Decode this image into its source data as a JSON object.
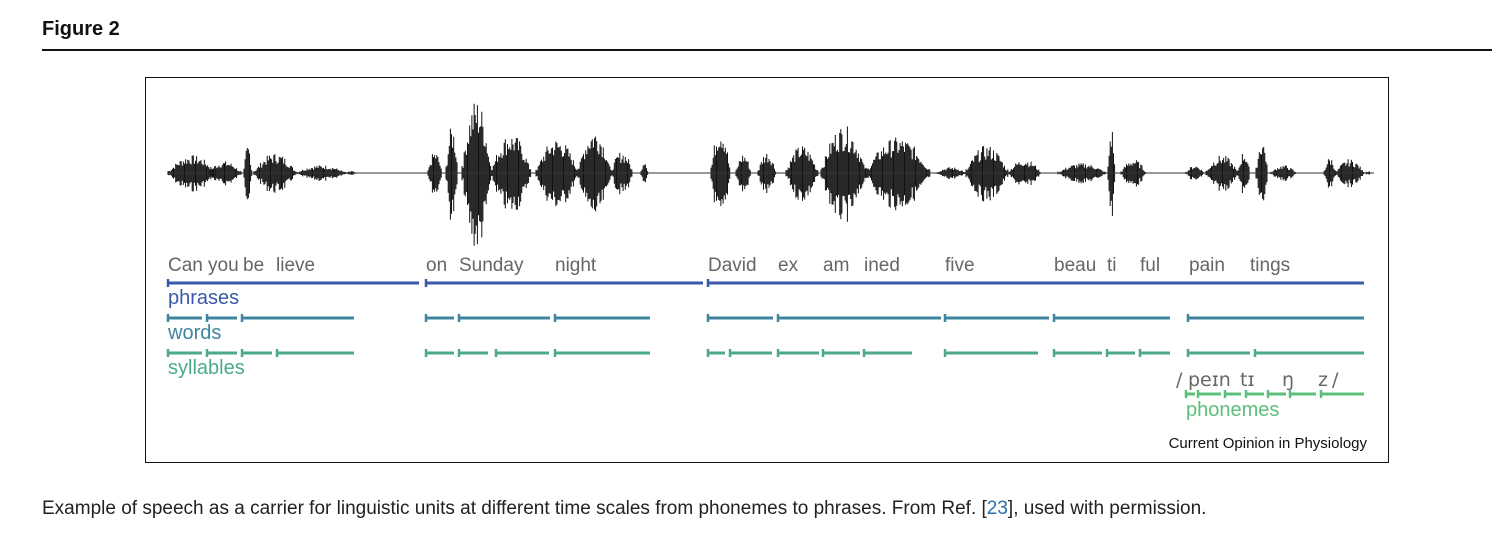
{
  "figure_label": "Figure 2",
  "caption": {
    "before": "Example of speech as a carrier for linguistic units at different time scales from phonemes to phrases. From Ref. [",
    "ref": "23",
    "after": "], used with permission."
  },
  "credit": "Current Opinion in Physiology",
  "tiers": {
    "phrases": "phrases",
    "words": "words",
    "syllables": "syllables",
    "phonemes": "phonemes"
  },
  "phoneme_transcription": [
    "/",
    "peɪn",
    "tɪ",
    "ŋ",
    "z",
    "/"
  ],
  "syllable_text": [
    "Can",
    "you",
    "be",
    "lieve",
    "on",
    "Sunday",
    "night",
    "David",
    "ex",
    "am",
    "ined",
    "five",
    "beau",
    "ti",
    "ful",
    "pain",
    "tings"
  ],
  "colors": {
    "phrases": "#3a5aa8",
    "words": "#3f85a0",
    "syllables": "#4caa8a",
    "phonemes": "#5cc07a",
    "text": "#666666",
    "link": "#2a6fa8"
  }
}
